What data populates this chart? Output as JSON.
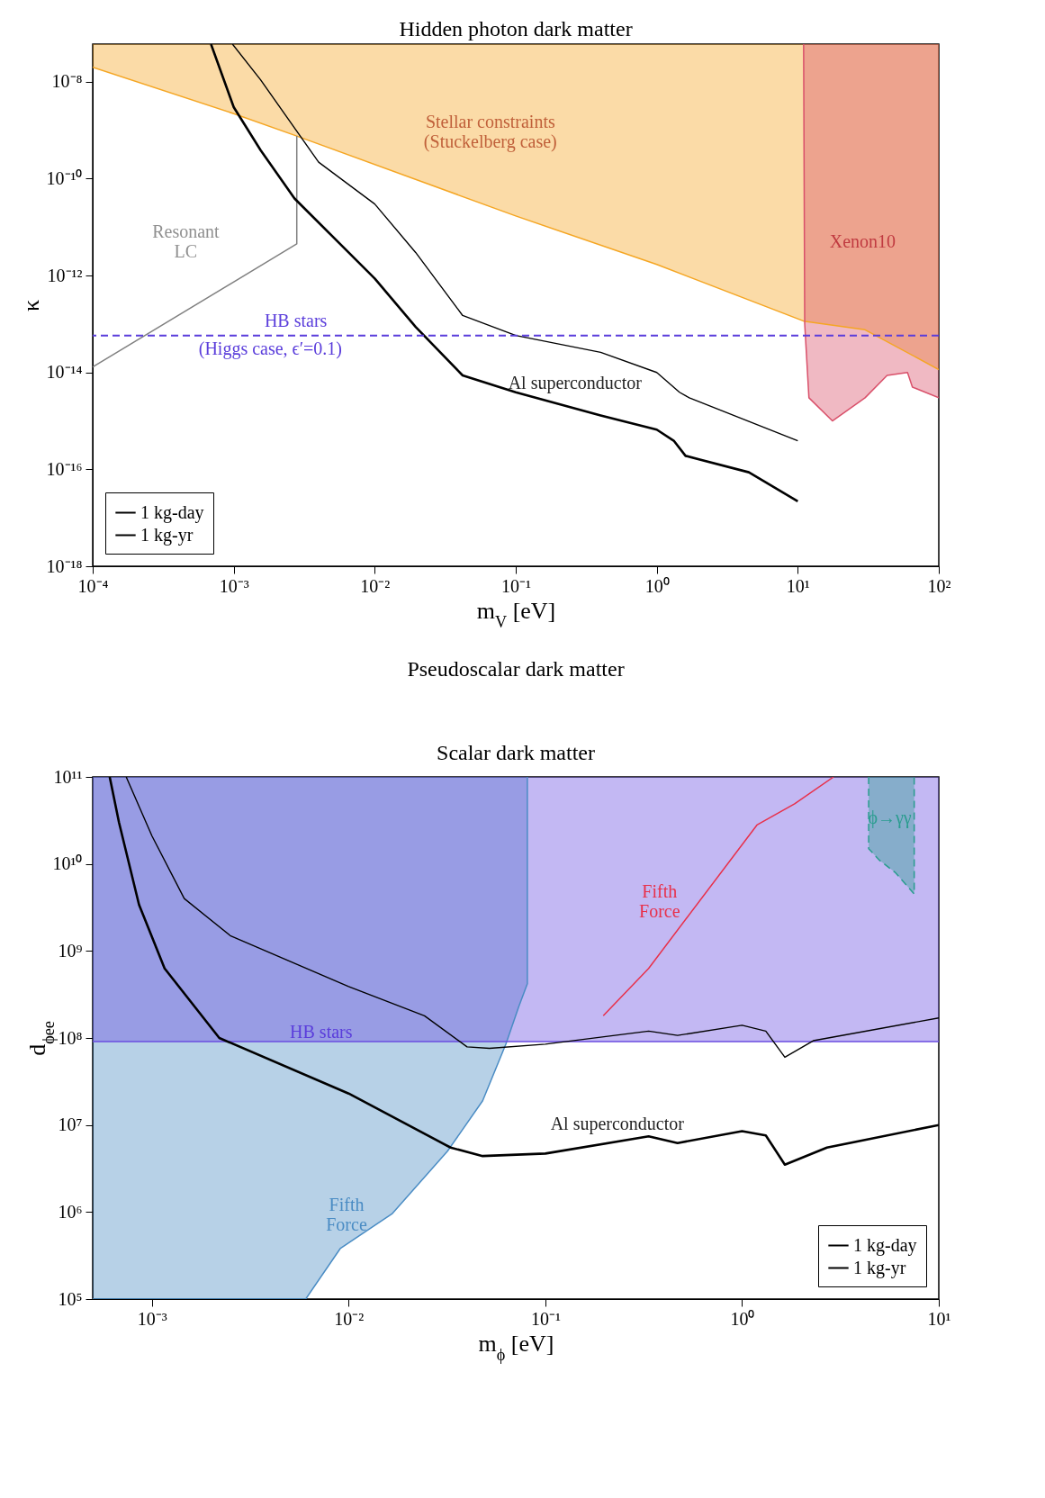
{
  "chart_data": [
    {
      "type": "line",
      "title": "Hidden photon dark matter",
      "xlabel": "m$_{V}$ [eV]",
      "ylabel": "κ",
      "log": "xy",
      "legend": "bottom left",
      "xlim": [
        0.0001,
        100
      ],
      "ylim": [
        1e-18,
        6e-08
      ],
      "xticks": [
        {
          "value": 0.0001,
          "label": "10⁻⁴"
        },
        {
          "value": 0.001,
          "label": "10⁻³"
        },
        {
          "value": 0.01,
          "label": "10⁻²"
        },
        {
          "value": 0.1,
          "label": "10⁻¹"
        },
        {
          "value": 1,
          "label": "10⁰"
        },
        {
          "value": 10,
          "label": "10¹"
        },
        {
          "value": 100,
          "label": "10²"
        }
      ],
      "yticks": [
        {
          "value": 1e-18,
          "label": "10⁻¹⁸"
        },
        {
          "value": 1e-16,
          "label": "10⁻¹⁶"
        },
        {
          "value": 1e-14,
          "label": "10⁻¹⁴"
        },
        {
          "value": 1e-12,
          "label": "10⁻¹²"
        },
        {
          "value": 1e-10,
          "label": "10⁻¹⁰"
        },
        {
          "value": 1e-08,
          "label": "10⁻⁸"
        }
      ],
      "series": [
        {
          "color": "#f5a623",
          "x": [
            0.0001,
            0.001,
            0.0028,
            0.1,
            1,
            11,
            30,
            100
          ],
          "values": [
            2e-08,
            2.2e-09,
            7.6e-10,
            1.7e-11,
            1.7e-12,
            1.15e-13,
            7.6e-14,
            1.15e-14
          ],
          "lower": [
            2e-08,
            2.2e-09,
            7.6e-10,
            1.7e-11,
            1.7e-12,
            1.15e-13,
            7.6e-14,
            1.15e-14
          ],
          "upper": [
            6e-08,
            6e-08,
            6e-08,
            6e-08,
            6e-08,
            6e-08,
            6e-08,
            6e-08
          ]
        },
        {
          "color": "#d9506a",
          "x": [
            11,
            11.2,
            12,
            17.6,
            30,
            43,
            60,
            65,
            100
          ],
          "values": [
            6e-08,
            1e-13,
            3e-15,
            1e-15,
            3e-15,
            8.7e-15,
            1e-14,
            5e-15,
            3e-15
          ],
          "lower": [
            6e-08,
            1e-13,
            3e-15,
            1e-15,
            3e-15,
            8.7e-15,
            1e-14,
            5e-15,
            3e-15
          ],
          "upper": [
            6e-08,
            6e-08,
            6e-08,
            6e-08,
            6e-08,
            6e-08,
            6e-08,
            6e-08,
            6e-08
          ]
        },
        {
          "color": "#808080",
          "x": [
            0.0001,
            0.0028,
            0.0028
          ],
          "values": [
            1.3e-14,
            4.5e-12,
            7.6e-10
          ]
        },
        {
          "name": "1 kg-day",
          "color": "#000000",
          "x": [
            0.00098,
            0.00155,
            0.004,
            0.01,
            0.0195,
            0.042,
            0.1,
            0.4,
            1,
            1.45,
            1.7,
            10
          ],
          "values": [
            6e-08,
            1.1e-08,
            2.2e-10,
            3e-11,
            3e-12,
            1.5e-13,
            5.8e-14,
            2.6e-14,
            1e-14,
            3.9e-15,
            3e-15,
            3.9e-16
          ]
        },
        {
          "name": "1 kg-yr",
          "color": "#000000",
          "x": [
            0.00069,
            0.001,
            0.00155,
            0.0027,
            0.01,
            0.0195,
            0.042,
            0.1,
            0.4,
            1,
            1.32,
            1.6,
            4.5,
            10
          ],
          "values": [
            6e-08,
            3e-09,
            3.9e-10,
            3.9e-11,
            8.7e-13,
            8.7e-14,
            8.7e-15,
            3.9e-15,
            1.3e-15,
            6.6e-16,
            3.9e-16,
            1.9e-16,
            8.7e-17,
            2.2e-17
          ]
        }
      ],
      "ref_lines": [
        {
          "axis": "y",
          "value": 5.8e-14,
          "label": "HB stars",
          "color": "#5a3ddb",
          "line_style": "dashed"
        }
      ],
      "annotations": [
        "Stellar constraints\n(Stuckelberg case)",
        "Resonant\nLC",
        "Xenon10",
        "(Higgs case, ϵ′=0.1)",
        "Al superconductor"
      ]
    },
    {
      "type": "other",
      "title": "Pseudoscalar dark matter"
    },
    {
      "type": "line",
      "title": "Scalar dark matter",
      "xlabel": "m$_{ϕ}$ [eV]",
      "ylabel": "d$_{ϕee}$",
      "log": "xy",
      "legend": "bottom right",
      "xlim": [
        0.0005,
        10
      ],
      "ylim": [
        100000,
        100000000000
      ],
      "xticks": [
        {
          "value": 0.001,
          "label": "10⁻³"
        },
        {
          "value": 0.01,
          "label": "10⁻²"
        },
        {
          "value": 0.1,
          "label": "10⁻¹"
        },
        {
          "value": 1,
          "label": "10⁰"
        },
        {
          "value": 10,
          "label": "10¹"
        }
      ],
      "yticks": [
        {
          "value": 100000,
          "label": "10⁵"
        },
        {
          "value": 1000000,
          "label": "10⁶"
        },
        {
          "value": 10000000,
          "label": "10⁷"
        },
        {
          "value": 100000000,
          "label": "10⁸"
        },
        {
          "value": 1000000000,
          "label": "10⁹"
        },
        {
          "value": 10000000000,
          "label": "10¹⁰"
        },
        {
          "value": 100000000000,
          "label": "10¹¹"
        }
      ],
      "series": [
        {
          "color": "#4a8cc4",
          "x": [
            0.0005,
            0.00605,
            0.00906,
            0.0166,
            0.0318,
            0.048,
            0.063,
            0.0733,
            0.081,
            0.081
          ],
          "values": [
            100000,
            100000,
            380000,
            950000,
            5000000,
            19000000,
            85000000,
            230000000,
            420000000,
            100000000000
          ],
          "lower": [
            100000,
            100000,
            380000,
            950000,
            5000000,
            19000000,
            85000000,
            230000000,
            420000000,
            100000000000
          ],
          "upper": [
            100000000000,
            100000000000,
            100000000000,
            100000000000,
            100000000000,
            100000000000,
            100000000000,
            100000000000,
            100000000000,
            100000000000
          ]
        },
        {
          "color": "#6a4de0",
          "x": [
            0.0005,
            10
          ],
          "values": [
            91000000,
            91000000
          ],
          "lower": [
            91000000,
            91000000
          ],
          "upper": [
            100000000000,
            100000000000
          ]
        },
        {
          "color": "#2a9d8f",
          "line_style": "dashed",
          "x": [
            4.4,
            4.4,
            5,
            6,
            7.5,
            7.5
          ],
          "values": [
            100000000000,
            15000000000,
            11000000000,
            8000000000,
            4500000000,
            100000000000
          ],
          "lower": [
            100000000000,
            15000000000,
            11000000000,
            8000000000,
            4500000000,
            100000000000
          ],
          "upper": [
            100000000000,
            100000000000,
            100000000000,
            100000000000,
            100000000000,
            100000000000
          ]
        },
        {
          "color": "#e8304a",
          "x": [
            0.197,
            0.335,
            1.19,
            1.85,
            2.92
          ],
          "values": [
            180000000,
            630000000,
            28000000000,
            49000000000,
            100000000000
          ]
        },
        {
          "name": "1 kg-day",
          "color": "#000000",
          "x": [
            0.00074,
            0.001,
            0.00146,
            0.0025,
            0.01,
            0.0243,
            0.04,
            0.052,
            0.1,
            0.335,
            0.47,
            1,
            1.32,
            1.65,
            2.3,
            10
          ],
          "values": [
            100000000000,
            21000000000,
            4000000000,
            1500000000,
            390000000,
            180000000,
            79000000,
            76000000,
            85000000,
            120000000,
            107000000,
            140000000,
            120000000,
            60000000,
            93000000,
            170000000
          ]
        },
        {
          "name": "1 kg-yr",
          "color": "#000000",
          "x": [
            0.00061,
            0.00068,
            0.00086,
            0.00116,
            0.0022,
            0.01,
            0.033,
            0.048,
            0.1,
            0.335,
            0.47,
            1,
            1.32,
            1.65,
            2.7,
            10
          ],
          "values": [
            100000000000,
            30000000000,
            3400000000,
            630000000,
            100000000,
            23000000,
            5500000,
            4400000,
            4700000,
            7400000,
            6200000,
            8500000,
            7600000,
            3500000,
            5500000,
            10000000
          ]
        }
      ],
      "annotations": [
        "HB stars",
        "Fifth\nForce",
        "Fifth\nForce",
        "Al superconductor",
        "ϕ→γγ"
      ]
    }
  ]
}
